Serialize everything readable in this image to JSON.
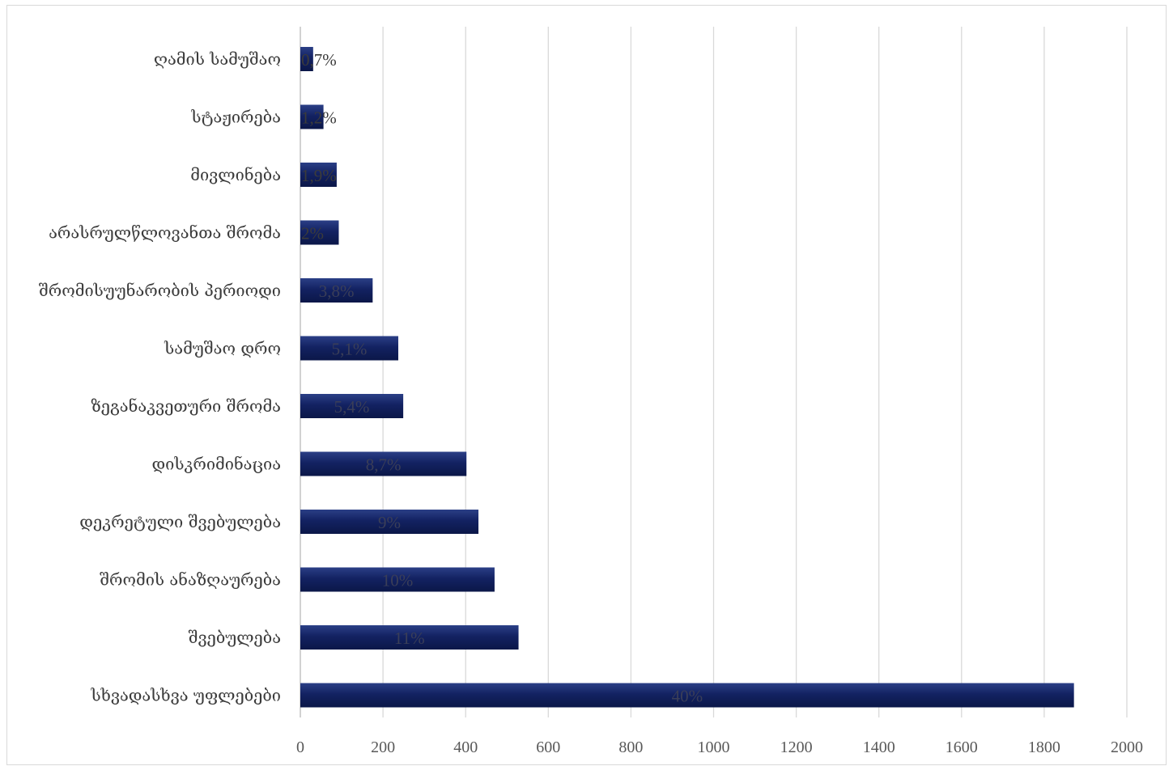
{
  "colors": {
    "bar_top": "#2b3f86",
    "bar_mid": "#132262",
    "bar_bottom": "#0b1748",
    "grid": "#d9d9d9",
    "inside_label": "#3a3e58",
    "outside_label": "#3b3b3b"
  },
  "chart_data": {
    "type": "bar",
    "orientation": "horizontal",
    "title": "",
    "xlabel": "",
    "ylabel": "",
    "xlim": [
      0,
      2000
    ],
    "x_ticks": [
      0,
      200,
      400,
      600,
      800,
      1000,
      1200,
      1400,
      1600,
      1800,
      2000
    ],
    "grid": "vertical major gridlines",
    "legend": "none",
    "categories": [
      "ღამის სამუშაო",
      "სტაჟირება",
      "მივლინება",
      "არასრულწლოვანთა შრომა",
      "შრომისუუნარობის პერიოდი",
      "სამუშაო დრო",
      "ზეგანაკვეთური შრომა",
      "დისკრიმინაცია",
      "დეკრეტული შვებულება",
      "შრომის ანაზღაურება",
      "შვებულება",
      "სხვადასხვა უფლებები"
    ],
    "values": [
      31,
      56,
      88,
      93,
      175,
      237,
      249,
      402,
      431,
      470,
      528,
      1872
    ],
    "data_labels": [
      "0,7%",
      "1,2%",
      "1,9%",
      "2%",
      "3,8%",
      "5,1%",
      "5,4%",
      "8,7%",
      "9%",
      "10%",
      "11%",
      "40%"
    ]
  }
}
